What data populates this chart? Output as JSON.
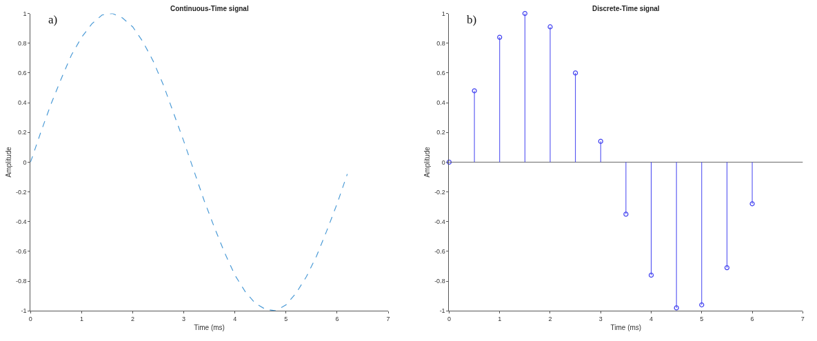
{
  "chart_data": [
    {
      "type": "line",
      "title": "Continuous-Time signal",
      "xlabel": "Time (ms)",
      "ylabel": "Amplitude",
      "annotations": [
        "a)"
      ],
      "line_style": "dashed",
      "grid": false,
      "legend": false,
      "x": [
        0,
        0.2,
        0.4,
        0.6,
        0.8,
        1,
        1.2,
        1.4,
        1.6,
        1.8,
        2,
        2.2,
        2.4,
        2.6,
        2.8,
        3,
        3.2,
        3.4,
        3.6,
        3.8,
        4,
        4.2,
        4.4,
        4.6,
        4.8,
        5,
        5.2,
        5.4,
        5.6,
        5.8,
        6,
        6.2
      ],
      "series": [
        {
          "color": "#4a9ad6",
          "values": [
            0,
            0.2,
            0.39,
            0.56,
            0.72,
            0.84,
            0.93,
            0.99,
            1.0,
            0.97,
            0.91,
            0.81,
            0.68,
            0.52,
            0.33,
            0.14,
            -0.06,
            -0.26,
            -0.44,
            -0.61,
            -0.76,
            -0.87,
            -0.95,
            -0.99,
            -1.0,
            -0.96,
            -0.88,
            -0.77,
            -0.63,
            -0.46,
            -0.28,
            -0.08
          ]
        }
      ],
      "xlim": [
        0,
        7
      ],
      "xticks": [
        0,
        1,
        2,
        3,
        4,
        5,
        6,
        7
      ],
      "ylim": [
        -1,
        1
      ],
      "yticks": [
        -1,
        -0.8,
        -0.6,
        -0.4,
        -0.2,
        0,
        0.2,
        0.4,
        0.6,
        0.8,
        1
      ]
    },
    {
      "type": "lollipop",
      "title": "Discrete-Time signal",
      "xlabel": "Time (ms)",
      "ylabel": "Amplitude",
      "annotations": [
        "b)"
      ],
      "marker": "circle",
      "ref_lines": [
        {
          "axis": "y",
          "value": 0,
          "color": "#666666"
        }
      ],
      "grid": false,
      "legend": false,
      "x": [
        0,
        0.5,
        1,
        1.5,
        2,
        2.5,
        3,
        3.5,
        4,
        4.5,
        5,
        5.5,
        6
      ],
      "series": [
        {
          "color": "#4040f0",
          "values": [
            0,
            0.48,
            0.84,
            1.0,
            0.91,
            0.6,
            0.14,
            -0.35,
            -0.76,
            -0.98,
            -0.96,
            -0.71,
            -0.28
          ]
        }
      ],
      "xlim": [
        0,
        7
      ],
      "xticks": [
        0,
        1,
        2,
        3,
        4,
        5,
        6,
        7
      ],
      "ylim": [
        -1,
        1
      ],
      "yticks": [
        -1,
        -0.8,
        -0.6,
        -0.4,
        -0.2,
        0,
        0.2,
        0.4,
        0.6,
        0.8,
        1
      ]
    }
  ]
}
